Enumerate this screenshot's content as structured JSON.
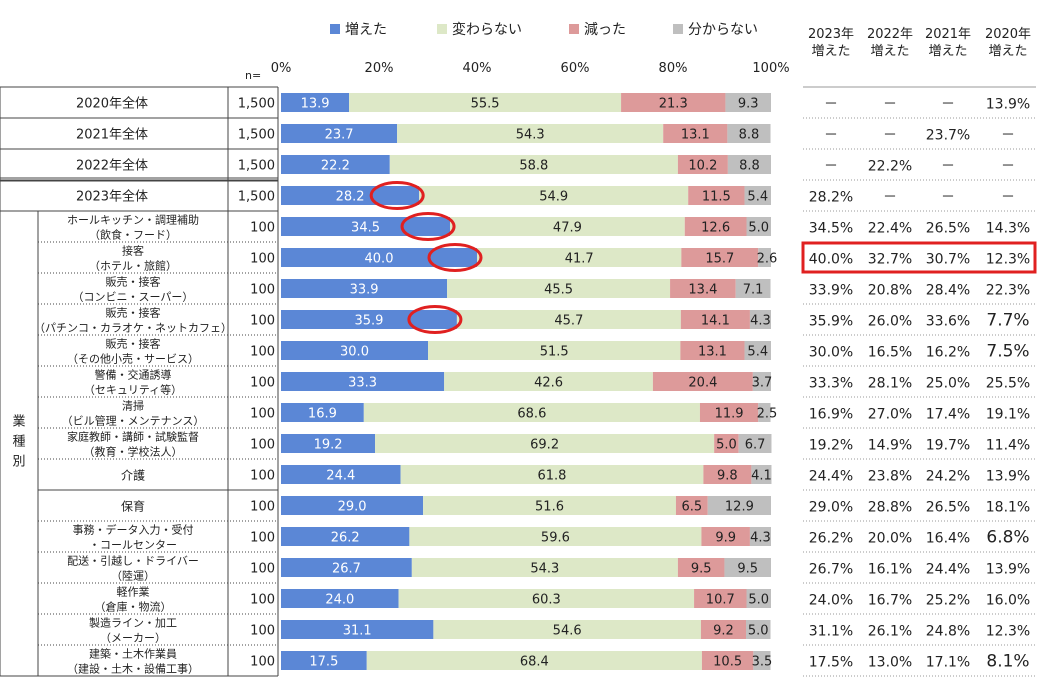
{
  "chart_data": {
    "type": "stacked-bar-horizontal",
    "legend": [
      "増えた",
      "変わらない",
      "減った",
      "分からない"
    ],
    "colors": [
      "#5b87d6",
      "#dde8c7",
      "#dd9a9a",
      "#bfbfbf"
    ],
    "n_label": "n=",
    "x_ticks": [
      "0%",
      "20%",
      "40%",
      "60%",
      "80%",
      "100%"
    ],
    "xlim": [
      0,
      100
    ],
    "year_headers": [
      "2023年\n増えた",
      "2022年\n増えた",
      "2021年\n増えた",
      "2020年\n増えた"
    ],
    "category_group_label": "業\n種\n別",
    "rows": [
      {
        "label": "2020年全体",
        "n": "1,500",
        "values": [
          13.9,
          55.5,
          21.3,
          9.3
        ],
        "labels": [
          "13.9",
          "55.5",
          "21.3",
          "9.3"
        ],
        "years": [
          "－",
          "－",
          "－",
          "13.9%"
        ]
      },
      {
        "label": "2021年全体",
        "n": "1,500",
        "values": [
          23.7,
          54.3,
          13.1,
          8.8
        ],
        "labels": [
          "23.7",
          "54.3",
          "13.1",
          "8.8"
        ],
        "years": [
          "－",
          "－",
          "23.7%",
          "－"
        ]
      },
      {
        "label": "2022年全体",
        "n": "1,500",
        "values": [
          22.2,
          58.8,
          10.2,
          8.8
        ],
        "labels": [
          "22.2",
          "58.8",
          "10.2",
          "8.8"
        ],
        "years": [
          "－",
          "22.2%",
          "－",
          "－"
        ]
      },
      {
        "label": "2023年全体",
        "n": "1,500",
        "values": [
          28.2,
          54.9,
          11.5,
          5.4
        ],
        "labels": [
          "28.2",
          "54.9",
          "11.5",
          "5.4"
        ],
        "years": [
          "28.2%",
          "－",
          "－",
          "－"
        ],
        "circled": true
      },
      {
        "label": "ホールキッチン・調理補助\n（飲食・フード）",
        "n": "100",
        "values": [
          34.5,
          47.9,
          12.6,
          5.0
        ],
        "labels": [
          "34.5",
          "47.9",
          "12.6",
          "5.0"
        ],
        "years": [
          "34.5%",
          "22.4%",
          "26.5%",
          "14.3%"
        ],
        "circled": true
      },
      {
        "label": "接客\n（ホテル・旅館）",
        "n": "100",
        "values": [
          40.0,
          41.7,
          15.7,
          2.6
        ],
        "labels": [
          "40.0",
          "41.7",
          "15.7",
          "2.6"
        ],
        "years": [
          "40.0%",
          "32.7%",
          "30.7%",
          "12.3%"
        ],
        "circled": true,
        "boxed": true
      },
      {
        "label": "販売・接客\n（コンビニ・スーパー）",
        "n": "100",
        "values": [
          33.9,
          45.5,
          13.4,
          7.1
        ],
        "labels": [
          "33.9",
          "45.5",
          "13.4",
          "7.1"
        ],
        "years": [
          "33.9%",
          "20.8%",
          "28.4%",
          "22.3%"
        ]
      },
      {
        "label": "販売・接客\n（パチンコ・カラオケ・ネットカフェ）",
        "n": "100",
        "values": [
          35.9,
          45.7,
          14.1,
          4.3
        ],
        "labels": [
          "35.9",
          "45.7",
          "14.1",
          "4.3"
        ],
        "years": [
          "35.9%",
          "26.0%",
          "33.6%",
          "7.7%"
        ],
        "circled": true,
        "big_last": true
      },
      {
        "label": "販売・接客\n（その他小売・サービス）",
        "n": "100",
        "values": [
          30.0,
          51.5,
          13.1,
          5.4
        ],
        "labels": [
          "30.0",
          "51.5",
          "13.1",
          "5.4"
        ],
        "years": [
          "30.0%",
          "16.5%",
          "16.2%",
          "7.5%"
        ],
        "big_last": true
      },
      {
        "label": "警備・交通誘導\n（セキュリティ等）",
        "n": "100",
        "values": [
          33.3,
          42.6,
          20.4,
          3.7
        ],
        "labels": [
          "33.3",
          "42.6",
          "20.4",
          "3.7"
        ],
        "years": [
          "33.3%",
          "28.1%",
          "25.0%",
          "25.5%"
        ]
      },
      {
        "label": "清掃\n（ビル管理・メンテナンス）",
        "n": "100",
        "values": [
          16.9,
          68.6,
          11.9,
          2.5
        ],
        "labels": [
          "16.9",
          "68.6",
          "11.9",
          "2.5"
        ],
        "years": [
          "16.9%",
          "27.0%",
          "17.4%",
          "19.1%"
        ]
      },
      {
        "label": "家庭教師・講師・試験監督\n（教育・学校法人）",
        "n": "100",
        "values": [
          19.2,
          69.2,
          5.0,
          6.7
        ],
        "labels": [
          "19.2",
          "69.2",
          "5.0",
          "6.7"
        ],
        "years": [
          "19.2%",
          "14.9%",
          "19.7%",
          "11.4%"
        ]
      },
      {
        "label": "介護",
        "n": "100",
        "values": [
          24.4,
          61.8,
          9.8,
          4.1
        ],
        "labels": [
          "24.4",
          "61.8",
          "9.8",
          "4.1"
        ],
        "years": [
          "24.4%",
          "23.8%",
          "24.2%",
          "13.9%"
        ]
      },
      {
        "label": "保育",
        "n": "100",
        "values": [
          29.0,
          51.6,
          6.5,
          12.9
        ],
        "labels": [
          "29.0",
          "51.6",
          "6.5",
          "12.9"
        ],
        "years": [
          "29.0%",
          "28.8%",
          "26.5%",
          "18.1%"
        ]
      },
      {
        "label": "事務・データ入力・受付\n・コールセンター",
        "n": "100",
        "values": [
          26.2,
          59.6,
          9.9,
          4.3
        ],
        "labels": [
          "26.2",
          "59.6",
          "9.9",
          "4.3"
        ],
        "years": [
          "26.2%",
          "20.0%",
          "16.4%",
          "6.8%"
        ],
        "big_last": true
      },
      {
        "label": "配送・引越し・ドライバー\n（陸運）",
        "n": "100",
        "values": [
          26.7,
          54.3,
          9.5,
          9.5
        ],
        "labels": [
          "26.7",
          "54.3",
          "9.5",
          "9.5"
        ],
        "years": [
          "26.7%",
          "16.1%",
          "24.4%",
          "13.9%"
        ]
      },
      {
        "label": "軽作業\n（倉庫・物流）",
        "n": "100",
        "values": [
          24.0,
          60.3,
          10.7,
          5.0
        ],
        "labels": [
          "24.0",
          "60.3",
          "10.7",
          "5.0"
        ],
        "years": [
          "24.0%",
          "16.7%",
          "25.2%",
          "16.0%"
        ]
      },
      {
        "label": "製造ライン・加工\n（メーカー）",
        "n": "100",
        "values": [
          31.1,
          54.6,
          9.2,
          5.0
        ],
        "labels": [
          "31.1",
          "54.6",
          "9.2",
          "5.0"
        ],
        "years": [
          "31.1%",
          "26.1%",
          "24.8%",
          "12.3%"
        ]
      },
      {
        "label": "建築・土木作業員\n（建設・土木・設備工事）",
        "n": "100",
        "values": [
          17.5,
          68.4,
          10.5,
          3.5
        ],
        "labels": [
          "17.5",
          "68.4",
          "10.5",
          "3.5"
        ],
        "years": [
          "17.5%",
          "13.0%",
          "17.1%",
          "8.1%"
        ],
        "big_last": true
      }
    ]
  }
}
